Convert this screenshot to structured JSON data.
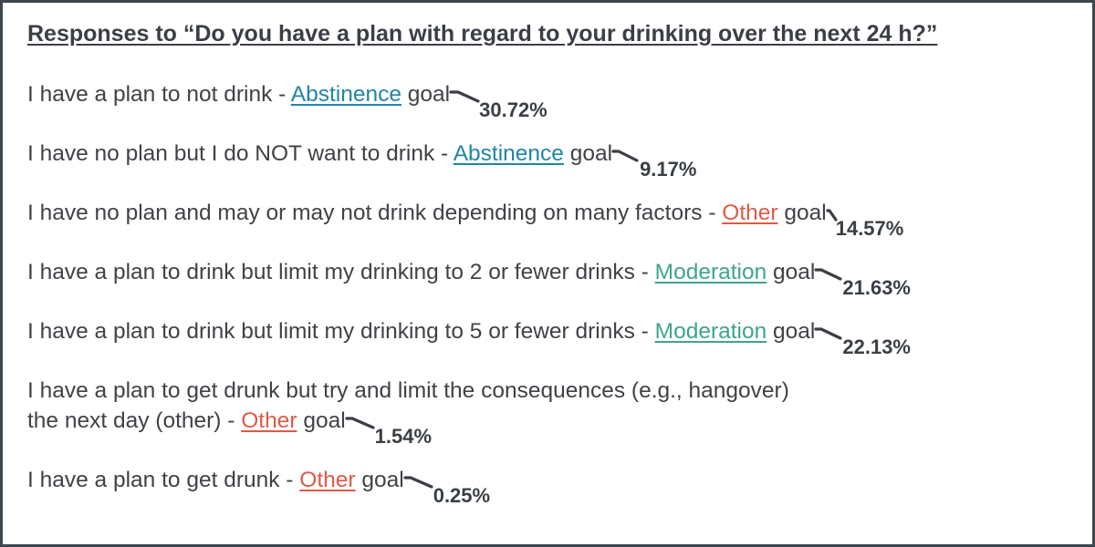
{
  "title": "Responses to “Do you have a plan with regard to your drinking over the next 24 h?”",
  "goal_suffix": "goal",
  "responses": [
    {
      "text": "I have a plan to not drink - ",
      "goal_label": "Abstinence",
      "percent": "30.72%",
      "value": 30.72,
      "goal_color": "#1f86a6"
    },
    {
      "text": "I have no plan but I do NOT want to drink - ",
      "goal_label": "Abstinence",
      "percent": "9.17%",
      "value": 9.17,
      "goal_color": "#1f86a6"
    },
    {
      "text": "I have no plan and may or may not drink depending on many factors - ",
      "goal_label": "Other",
      "percent": "14.57%",
      "value": 14.57,
      "goal_color": "#df5a44"
    },
    {
      "text": "I have a plan to drink but limit my drinking to 2 or fewer drinks - ",
      "goal_label": "Moderation",
      "percent": "21.63%",
      "value": 21.63,
      "goal_color": "#3ea58b"
    },
    {
      "text": "I have a plan to drink but limit my drinking to 5 or fewer drinks - ",
      "goal_label": "Moderation",
      "percent": "22.13%",
      "value": 22.13,
      "goal_color": "#3ea58b"
    },
    {
      "text_line1": "I have a plan to get drunk but try and limit the consequences (e.g., hangover)",
      "text_line2": "the next day (other) - ",
      "goal_label": "Other",
      "percent": "1.54%",
      "value": 1.54,
      "goal_color": "#df5a44"
    },
    {
      "text": "I have a plan to get drunk - ",
      "goal_label": "Other",
      "percent": "0.25%",
      "value": 0.25,
      "goal_color": "#df5a44"
    }
  ],
  "colors": {
    "border": "#3c4750",
    "text": "#3f4246",
    "abstinence": "#1f86a6",
    "other": "#df5a44",
    "moderation": "#3ea58b"
  }
}
